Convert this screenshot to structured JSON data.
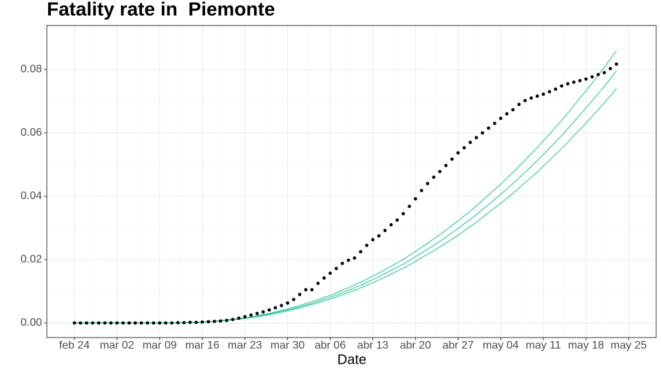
{
  "chart_data": {
    "type": "line",
    "title": "Fatality rate in  Piemonte",
    "x_label": "Date",
    "x": [
      "feb 24",
      null,
      null,
      null,
      null,
      null,
      null,
      "mar 02",
      null,
      null,
      null,
      null,
      null,
      null,
      "mar 09",
      null,
      null,
      null,
      null,
      null,
      null,
      "mar 16",
      null,
      null,
      null,
      null,
      null,
      null,
      "mar 23",
      null,
      null,
      null,
      null,
      null,
      null,
      "mar 30",
      null,
      null,
      null,
      null,
      null,
      null,
      "abr 06",
      null,
      null,
      null,
      null,
      null,
      null,
      "abr 13",
      null,
      null,
      null,
      null,
      null,
      null,
      "abr 20",
      null,
      null,
      null,
      null,
      null,
      null,
      "abr 27",
      null,
      null,
      null,
      null,
      null,
      null,
      "may 04",
      null,
      null,
      null,
      null,
      null,
      null,
      "may 11",
      null,
      null,
      null,
      null,
      null,
      null,
      "may 18",
      null,
      null,
      null,
      null,
      null,
      null,
      "may 25"
    ],
    "ylim": [
      -0.0046,
      0.0939
    ],
    "yticks": [
      {
        "value": 0,
        "label": "0.00"
      },
      0.02,
      0.04,
      0.06,
      0.08
    ],
    "grid": true,
    "series": [
      {
        "color": "#00c08b",
        "style": "line",
        "values": [
          0,
          0,
          0,
          0,
          0,
          0,
          0,
          0,
          0,
          0,
          0,
          0,
          0,
          0,
          0,
          0,
          0.0,
          0.0,
          0.0001,
          0.0001,
          0.0002,
          0.0003,
          0.0004,
          0.0005,
          0.0007,
          0.0009,
          0.0011,
          0.0013,
          0.0015,
          0.0018,
          0.0021,
          0.0025,
          0.0028,
          0.0032,
          0.0037,
          0.0041,
          0.0046,
          0.0051,
          0.0057,
          0.0062,
          0.0068,
          0.0075,
          0.0081,
          0.0088,
          0.0096,
          0.0103,
          0.0111,
          0.0119,
          0.0128,
          0.0137,
          0.0146,
          0.0156,
          0.0166,
          0.0176,
          0.0186,
          0.0197,
          0.0209,
          0.0221,
          0.0233,
          0.0245,
          0.0258,
          0.0271,
          0.0285,
          0.0298,
          0.0313,
          0.0327,
          0.0342,
          0.0358,
          0.0374,
          0.039,
          0.0406,
          0.0423,
          0.044,
          0.0458,
          0.0476,
          0.0494,
          0.0513,
          0.0532,
          0.0552,
          0.0572,
          0.0592,
          0.0613,
          0.0635,
          0.0657,
          0.0679,
          0.0701,
          0.0724,
          0.0747,
          0.0771,
          0.0796,
          null,
          null
        ]
      },
      {
        "color": "#00c08b",
        "style": "line",
        "values": [
          0,
          0,
          0,
          0,
          0,
          0,
          0,
          0,
          0,
          0,
          0,
          0,
          0,
          0,
          0,
          0,
          0,
          0,
          0.0001,
          0.0001,
          0.0002,
          0.0003,
          0.0004,
          0.0005,
          0.0008,
          0.001,
          0.0012,
          0.0014,
          0.0016,
          0.0019,
          0.0023,
          0.0027,
          0.003,
          0.0035,
          0.004,
          0.0044,
          0.005,
          0.0055,
          0.0062,
          0.0067,
          0.0073,
          0.0081,
          0.0087,
          0.0095,
          0.0104,
          0.0111,
          0.012,
          0.0129,
          0.0138,
          0.0148,
          0.0158,
          0.0168,
          0.0179,
          0.019,
          0.0201,
          0.0213,
          0.0226,
          0.0239,
          0.0252,
          0.0265,
          0.0279,
          0.0293,
          0.0308,
          0.0322,
          0.0338,
          0.0353,
          0.0369,
          0.0387,
          0.0404,
          0.0421,
          0.0438,
          0.0457,
          0.0475,
          0.0495,
          0.0514,
          0.0534,
          0.0554,
          0.0575,
          0.0596,
          0.0618,
          0.0639,
          0.0662,
          0.0686,
          0.071,
          0.0733,
          0.0757,
          0.0782,
          0.0807,
          0.0833,
          0.086,
          null,
          null
        ]
      },
      {
        "color": "#00c08b",
        "style": "line",
        "values": [
          0,
          0,
          0,
          0,
          0,
          0,
          0,
          0,
          0,
          0,
          0,
          0,
          0,
          0,
          0,
          0,
          0,
          0,
          0.0001,
          0.0001,
          0.0002,
          0.0003,
          0.0004,
          0.0005,
          0.0007,
          0.0008,
          0.001,
          0.0012,
          0.0014,
          0.0017,
          0.002,
          0.0023,
          0.0026,
          0.003,
          0.0034,
          0.0038,
          0.0043,
          0.0047,
          0.0053,
          0.0058,
          0.0063,
          0.007,
          0.0075,
          0.0082,
          0.0089,
          0.0096,
          0.0103,
          0.0111,
          0.0119,
          0.0127,
          0.0136,
          0.0145,
          0.0154,
          0.0164,
          0.0173,
          0.0183,
          0.0194,
          0.0206,
          0.0217,
          0.0228,
          0.024,
          0.0252,
          0.0265,
          0.0277,
          0.0291,
          0.0304,
          0.0318,
          0.0333,
          0.0348,
          0.0363,
          0.0378,
          0.0393,
          0.0409,
          0.0426,
          0.0443,
          0.0459,
          0.0477,
          0.0495,
          0.0513,
          0.0532,
          0.0551,
          0.057,
          0.0591,
          0.0611,
          0.0631,
          0.0652,
          0.0673,
          0.0695,
          0.0717,
          0.074,
          null,
          null
        ]
      },
      {
        "color": "#000000",
        "style": "points",
        "values": [
          0,
          0,
          0,
          0,
          0,
          0,
          0,
          0,
          0,
          0,
          0,
          0,
          0,
          0,
          0,
          0,
          0,
          0.0001,
          0.0001,
          0.0002,
          0.0002,
          0.0003,
          0.0004,
          0.0005,
          0.0006,
          0.0008,
          0.0011,
          0.0015,
          0.002,
          0.0025,
          0.003,
          0.0035,
          0.0041,
          0.0048,
          0.0055,
          0.0063,
          0.0074,
          0.009,
          0.0105,
          0.0105,
          0.0125,
          0.0142,
          0.0157,
          0.0172,
          0.0188,
          0.0198,
          0.0205,
          0.0225,
          0.0245,
          0.0263,
          0.0275,
          0.0292,
          0.031,
          0.0325,
          0.0345,
          0.0368,
          0.0392,
          0.0418,
          0.044,
          0.046,
          0.0478,
          0.0497,
          0.0517,
          0.0537,
          0.0553,
          0.057,
          0.0585,
          0.06,
          0.0615,
          0.063,
          0.0646,
          0.066,
          0.0673,
          0.069,
          0.0702,
          0.071,
          0.0716,
          0.0722,
          0.073,
          0.0738,
          0.0748,
          0.0755,
          0.076,
          0.0765,
          0.077,
          0.0777,
          0.0784,
          0.079,
          0.0803,
          0.0817,
          null,
          null
        ]
      }
    ]
  }
}
